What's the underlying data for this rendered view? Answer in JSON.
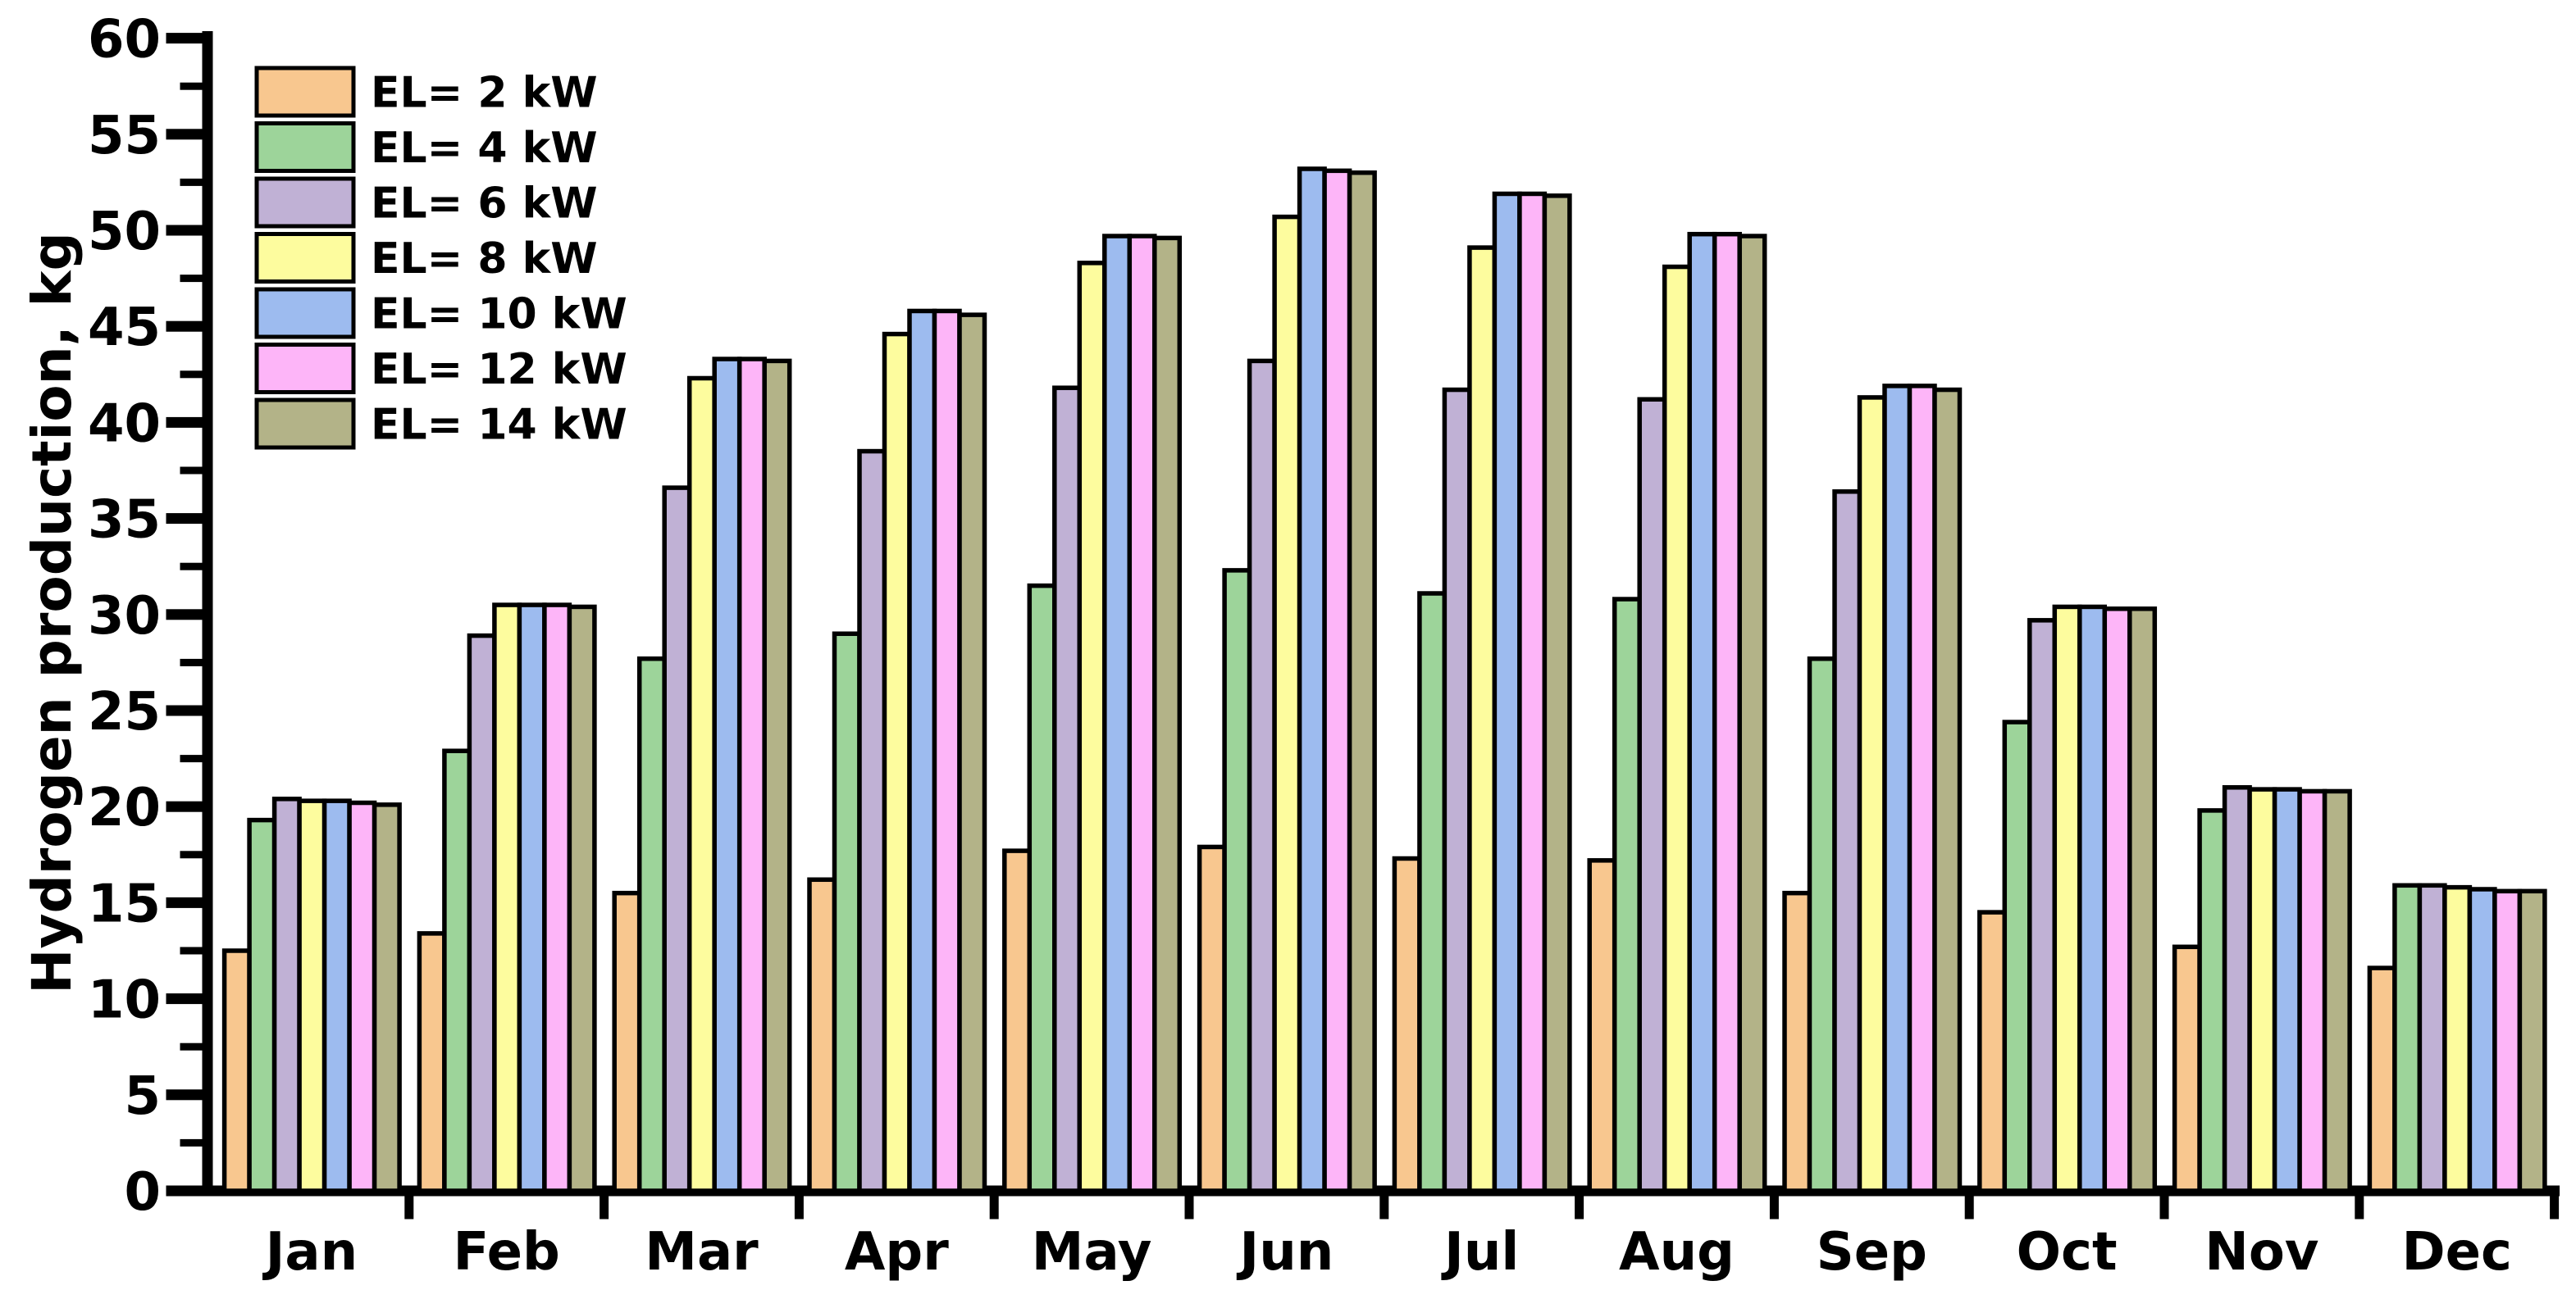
{
  "figure": {
    "background": "#FFFFFF",
    "axis_color": "#000000",
    "bar_border_color": "#000000"
  },
  "chart_data": {
    "type": "bar",
    "title": "",
    "xlabel": "",
    "ylabel": "Hydrogen production, kg",
    "ylim": [
      0,
      60
    ],
    "ytick_step": 5,
    "ytick_minor_step": 2.5,
    "yticks": [
      0,
      5,
      10,
      15,
      20,
      25,
      30,
      35,
      40,
      45,
      50,
      55,
      60
    ],
    "ytick_labels": [
      "0",
      "5",
      "10",
      "15",
      "20",
      "25",
      "30",
      "35",
      "40",
      "45",
      "50",
      "55",
      "60"
    ],
    "grid": "off",
    "legend_position": "top-left",
    "categories": [
      "Jan",
      "Feb",
      "Mar",
      "Apr",
      "May",
      "Jun",
      "Jul",
      "Aug",
      "Sep",
      "Oct",
      "Nov",
      "Dec"
    ],
    "series": [
      {
        "name": "EL= 2 kW",
        "color": "#F8C78F",
        "values": [
          12.5,
          13.4,
          15.5,
          16.2,
          17.7,
          17.9,
          17.3,
          17.2,
          15.5,
          14.5,
          12.7,
          11.6
        ]
      },
      {
        "name": "EL= 4 kW",
        "color": "#9DD49A",
        "values": [
          19.3,
          22.9,
          27.7,
          29.0,
          31.5,
          32.3,
          31.1,
          30.8,
          27.7,
          24.4,
          19.8,
          15.9
        ]
      },
      {
        "name": "EL= 6 kW",
        "color": "#C0B1D5",
        "values": [
          20.4,
          28.9,
          36.6,
          38.5,
          41.8,
          43.2,
          41.7,
          41.2,
          36.4,
          29.7,
          21.0,
          15.9
        ]
      },
      {
        "name": "EL= 8 kW",
        "color": "#FDFC9E",
        "values": [
          20.3,
          30.5,
          42.3,
          44.6,
          48.3,
          50.7,
          49.1,
          48.1,
          41.3,
          30.4,
          20.9,
          15.8
        ]
      },
      {
        "name": "EL= 10 kW",
        "color": "#9DBBEF",
        "values": [
          20.3,
          30.5,
          43.3,
          45.8,
          49.7,
          53.2,
          51.9,
          49.8,
          41.9,
          30.4,
          20.9,
          15.7
        ]
      },
      {
        "name": "EL= 12 kW",
        "color": "#FDB5F8",
        "values": [
          20.2,
          30.5,
          43.3,
          45.8,
          49.7,
          53.1,
          51.9,
          49.8,
          41.9,
          30.3,
          20.8,
          15.6
        ]
      },
      {
        "name": "EL= 14 kW",
        "color": "#B3B388",
        "values": [
          20.1,
          30.4,
          43.2,
          45.6,
          49.6,
          53.0,
          51.8,
          49.7,
          41.7,
          30.3,
          20.8,
          15.6
        ]
      }
    ]
  }
}
